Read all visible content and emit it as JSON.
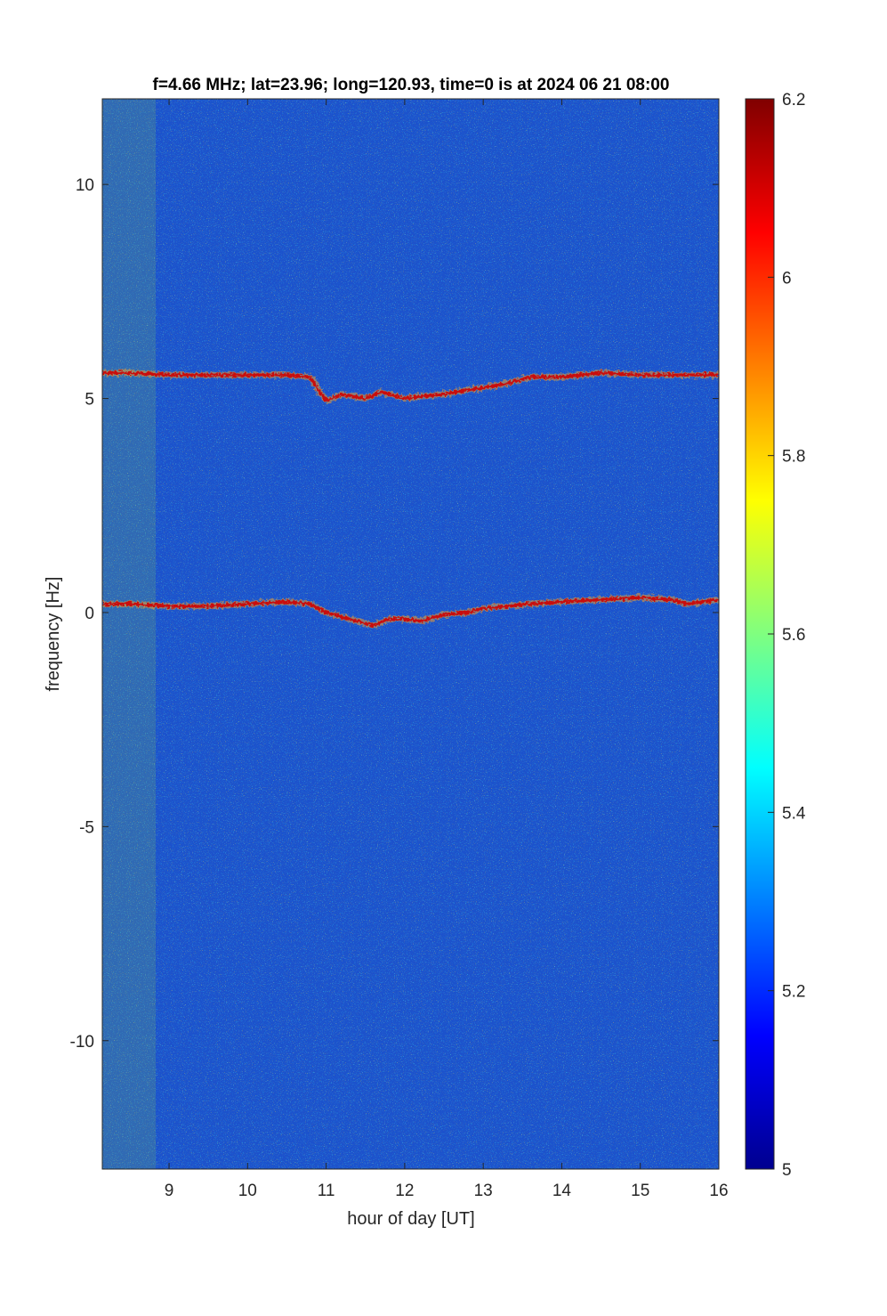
{
  "chart_data": {
    "type": "heatmap",
    "title": "f=4.66 MHz;  lat=23.96; long=120.93, time=0 is at 2024 06 21 08:00",
    "xlabel": "hour of day [UT]",
    "ylabel": "frequency [Hz]",
    "xlim": [
      8.15,
      16.0
    ],
    "ylim": [
      -13.0,
      12.0
    ],
    "x_ticks": [
      9,
      10,
      11,
      12,
      13,
      14,
      15,
      16
    ],
    "x_tick_labels": [
      "9",
      "10",
      "11",
      "12",
      "13",
      "14",
      "15",
      "16"
    ],
    "y_ticks": [
      10,
      5,
      0,
      -5,
      -10
    ],
    "y_tick_labels": [
      "10",
      "5",
      "0",
      "-5",
      "-10"
    ],
    "colorbar": {
      "colormap": "jet",
      "clim": [
        5.0,
        6.2
      ],
      "ticks": [
        6.2,
        6.0,
        5.8,
        5.6,
        5.4,
        5.2,
        5.0
      ],
      "tick_labels": [
        "6.2",
        "6",
        "5.8",
        "5.6",
        "5.4",
        "5.2",
        "5"
      ]
    },
    "background_level": 5.25,
    "traces": [
      {
        "x": [
          8.15,
          8.5,
          9.0,
          9.5,
          10.0,
          10.5,
          10.8,
          10.9,
          11.0,
          11.2,
          11.5,
          11.7,
          12.0,
          12.2,
          12.5,
          12.8,
          13.0,
          13.3,
          13.6,
          14.0,
          14.5,
          15.0,
          15.4,
          15.6,
          16.0
        ],
        "y": [
          5.6,
          5.6,
          5.55,
          5.55,
          5.55,
          5.55,
          5.5,
          5.2,
          4.95,
          5.1,
          5.0,
          5.15,
          5.0,
          5.05,
          5.1,
          5.2,
          5.25,
          5.35,
          5.5,
          5.5,
          5.6,
          5.55,
          5.55,
          5.55,
          5.55
        ]
      },
      {
        "x": [
          8.15,
          8.5,
          9.0,
          9.5,
          10.0,
          10.5,
          10.8,
          11.0,
          11.3,
          11.6,
          11.8,
          12.0,
          12.2,
          12.5,
          12.8,
          13.0,
          13.3,
          13.6,
          14.0,
          14.5,
          15.0,
          15.4,
          15.6,
          16.0
        ],
        "y": [
          0.2,
          0.2,
          0.15,
          0.15,
          0.2,
          0.25,
          0.2,
          0.0,
          -0.15,
          -0.3,
          -0.15,
          -0.15,
          -0.2,
          -0.05,
          0.0,
          0.1,
          0.15,
          0.2,
          0.25,
          0.3,
          0.35,
          0.3,
          0.2,
          0.3
        ]
      }
    ]
  }
}
